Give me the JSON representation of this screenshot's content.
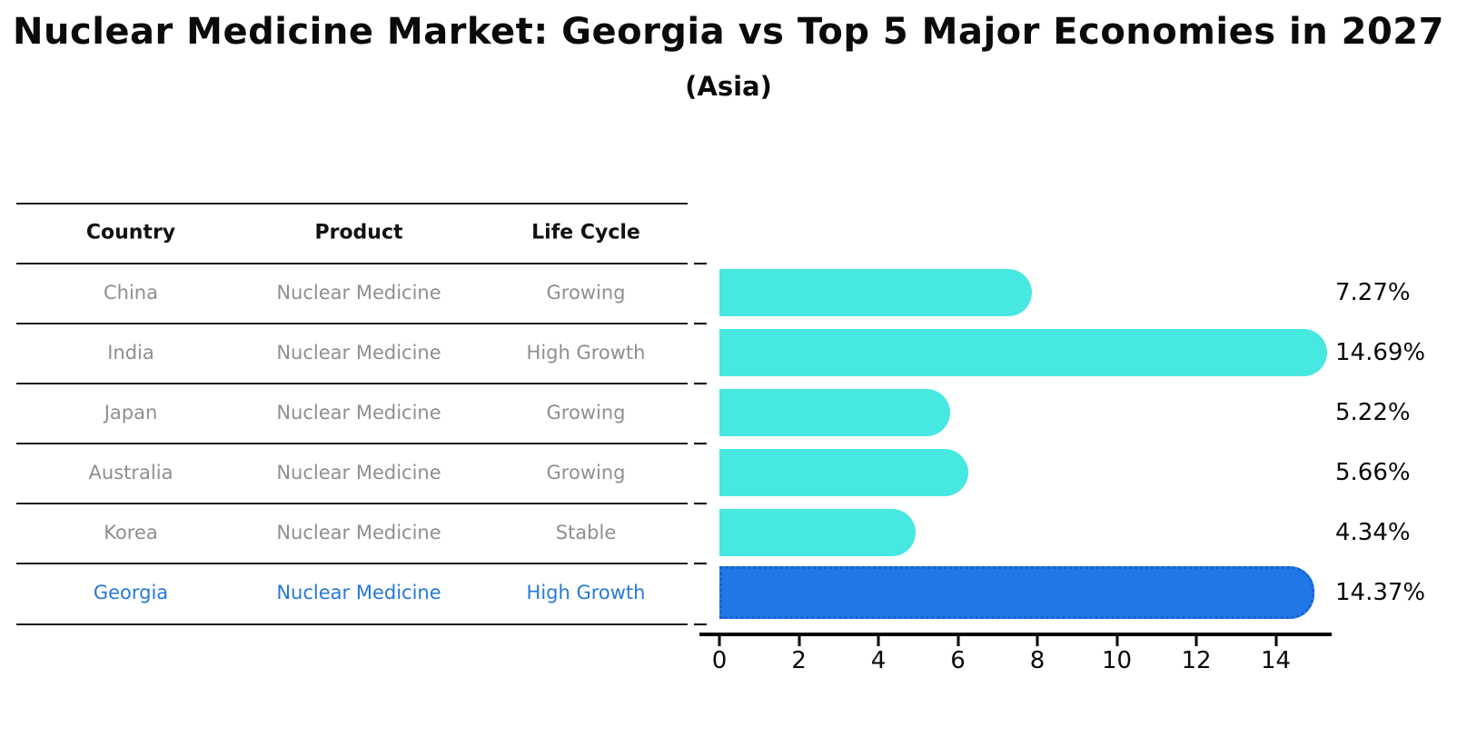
{
  "title": "Nuclear Medicine Market: Georgia vs Top 5 Major Economies in 2027",
  "subtitle": "(Asia)",
  "table": {
    "headers": [
      "Country",
      "Product",
      "Life Cycle"
    ],
    "rows": [
      {
        "country": "China",
        "product": "Nuclear Medicine",
        "life_cycle": "Growing",
        "highlight": false
      },
      {
        "country": "India",
        "product": "Nuclear Medicine",
        "life_cycle": "High Growth",
        "highlight": false
      },
      {
        "country": "Japan",
        "product": "Nuclear Medicine",
        "life_cycle": "Growing",
        "highlight": false
      },
      {
        "country": "Australia",
        "product": "Nuclear Medicine",
        "life_cycle": "Growing",
        "highlight": false
      },
      {
        "country": "Korea",
        "product": "Nuclear Medicine",
        "life_cycle": "Stable",
        "highlight": false
      },
      {
        "country": "Georgia",
        "product": "Nuclear Medicine",
        "life_cycle": "High Growth",
        "highlight": true
      }
    ]
  },
  "chart_data": {
    "type": "bar",
    "orientation": "horizontal",
    "title": "Nuclear Medicine Market: Georgia vs Top 5 Major Economies in 2027 (Asia)",
    "categories": [
      "China",
      "India",
      "Japan",
      "Australia",
      "Korea",
      "Georgia"
    ],
    "values": [
      7.27,
      14.69,
      5.22,
      5.66,
      4.34,
      14.37
    ],
    "value_labels": [
      "7.27%",
      "14.69%",
      "5.22%",
      "5.66%",
      "4.34%",
      "14.37%"
    ],
    "x_ticks": [
      0,
      2,
      4,
      6,
      8,
      10,
      12,
      14
    ],
    "xlim": [
      0,
      15.4
    ],
    "grid": false,
    "legend": "none",
    "highlight_index": 5,
    "bar_color": "#47e8e1",
    "highlight_fill": "#1f78e6",
    "highlight_border": "#1563d2",
    "highlight_text_color": "#2579db",
    "muted_text_color": "#8f8f8f"
  }
}
